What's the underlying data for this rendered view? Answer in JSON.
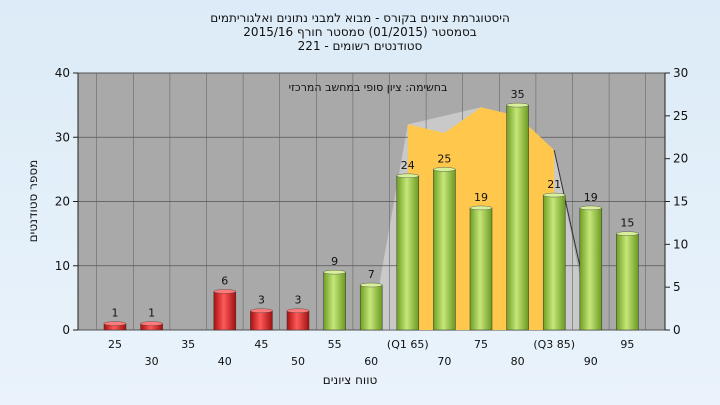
{
  "chart_data": {
    "type": "bar",
    "title_lines": [
      "היסטוגרמת ציונים בקורס - מבוא למבני נתונים ואלגוריתמים",
      "בסמסטר  (01/2015)  סמסטר חורף 2015/16",
      "סטודנטים רשומים - 221"
    ],
    "annotation": "בחשימה: ציון סופי במחשב המרכזי",
    "xlabel": "טווח ציונים",
    "ylabel": "מספר סטודנטים",
    "categories": [
      "25",
      "30",
      "35",
      "40",
      "45",
      "50",
      "55",
      "60",
      "(Q1 65)",
      "70",
      "75",
      "80",
      "(Q3 85)",
      "90",
      "95"
    ],
    "values": [
      1,
      1,
      0,
      6,
      3,
      3,
      9,
      7,
      24,
      25,
      19,
      35,
      21,
      19,
      15
    ],
    "value_labels": [
      "1",
      "1",
      "",
      "6",
      "3",
      "3",
      "9",
      "7",
      "24",
      "25",
      "19",
      "35",
      "21",
      "19",
      "15"
    ],
    "bar_colors": [
      "#e02020",
      "#e02020",
      "#e02020",
      "#e02020",
      "#e02020",
      "#e02020",
      "#8fc93a",
      "#8fc93a",
      "#8fc93a",
      "#8fc93a",
      "#8fc93a",
      "#8fc93a",
      "#8fc93a",
      "#8fc93a",
      "#8fc93a"
    ],
    "ylim": [
      0,
      40
    ],
    "yticks": [
      0,
      10,
      20,
      30,
      40
    ],
    "y2lim": [
      0,
      30
    ],
    "y2ticks": [
      0,
      5,
      10,
      15,
      20,
      25,
      30
    ],
    "overlay_area": {
      "color": "#ffc84d",
      "x": [
        8.0,
        9.0,
        10.0,
        11.0,
        12.0,
        12.0
      ],
      "y": [
        24,
        23,
        26,
        25,
        21,
        0
      ]
    },
    "overlay_line_color": "#333333",
    "background_area_color": "#c9c9c9",
    "plot_background": "#a9a9a9",
    "grid": true
  }
}
